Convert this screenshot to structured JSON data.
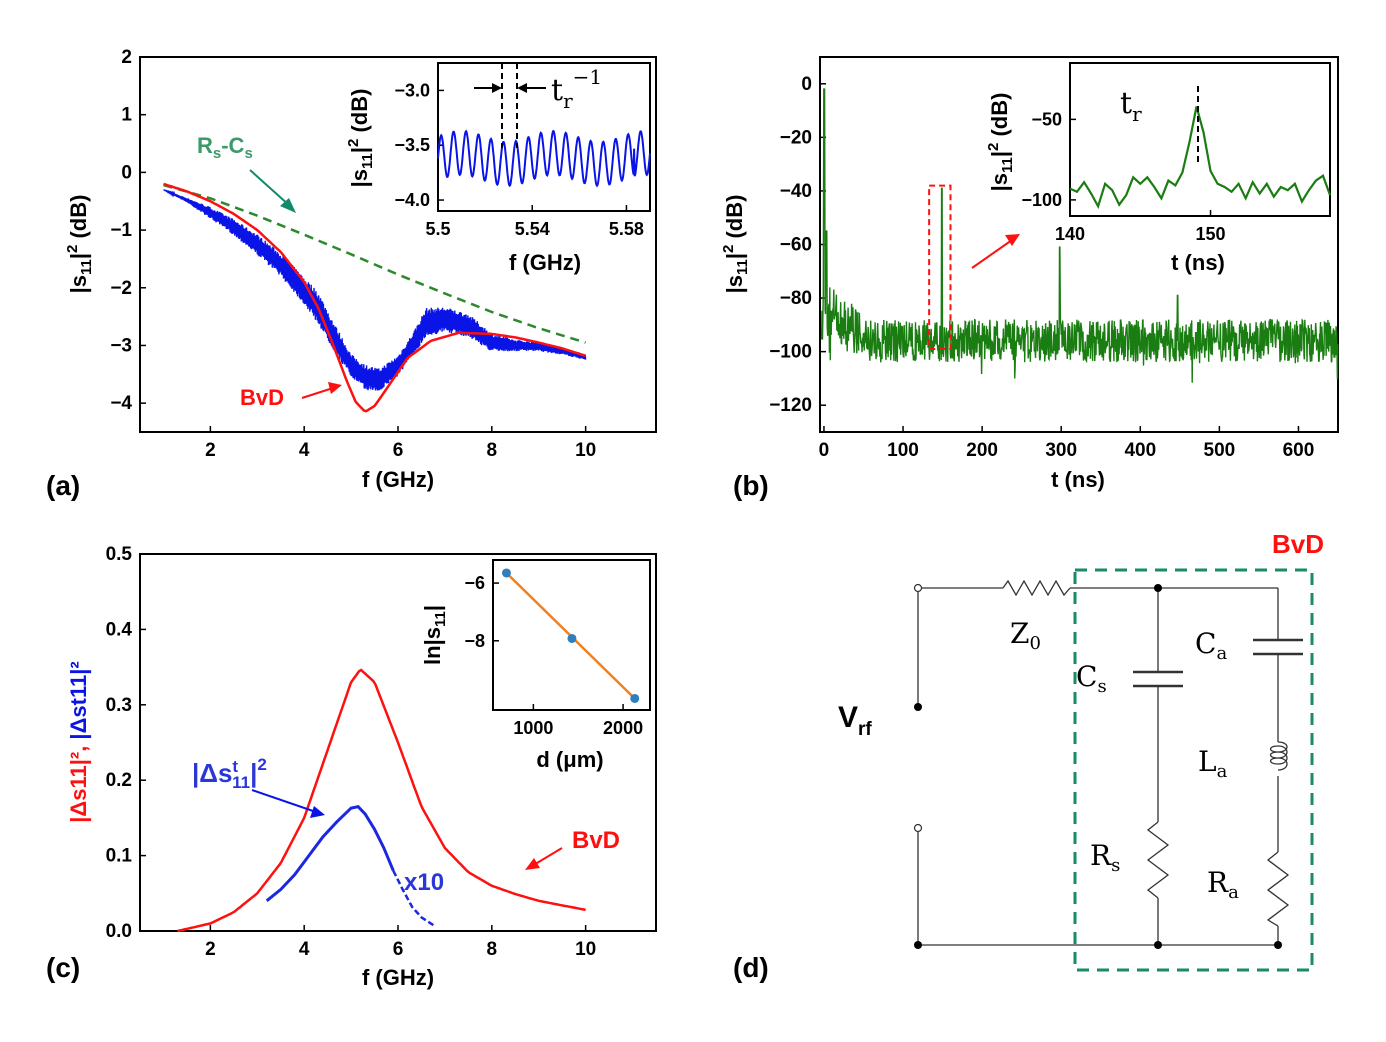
{
  "panels": {
    "a": "(a)",
    "b": "(b)",
    "c": "(c)",
    "d": "(d)"
  },
  "colors": {
    "blue": "#0a14e6",
    "red": "#ff1010",
    "green": "#1a7d12",
    "dashgreen": "#2b8a2b",
    "teal": "#138a6a",
    "orange": "#f08020",
    "dot": "#2f7fbf"
  },
  "chart_data": [
    {
      "id": "a",
      "type": "line",
      "xlabel": "f (GHz)",
      "ylabel": "|s11|² (dB)",
      "ylabel_parts": {
        "main": "|s",
        "sub": "11",
        "after": "|",
        "sup": "2",
        "unit": " (dB)"
      },
      "xlim": [
        0.5,
        11.5
      ],
      "ylim": [
        -4.5,
        2
      ],
      "xticks": [
        "2",
        "4",
        "6",
        "8",
        "10"
      ],
      "yticks": [
        "−4",
        "−3",
        "−2",
        "−1",
        "0",
        "1",
        "2"
      ],
      "annotations": {
        "rs_main": "R",
        "rs_sub1": "s",
        "rs_mid": "-C",
        "rs_sub2": "s",
        "bvd": "BvD"
      },
      "series": [
        {
          "name": "measured",
          "color": "blue",
          "x": [
            1,
            1.5,
            2,
            2.5,
            3,
            3.5,
            4,
            4.3,
            4.6,
            5,
            5.3,
            5.6,
            6,
            6.3,
            6.6,
            7,
            7.5,
            8,
            8.5,
            9,
            9.5,
            10
          ],
          "y": [
            -0.3,
            -0.48,
            -0.7,
            -0.95,
            -1.25,
            -1.6,
            -2.05,
            -2.35,
            -2.8,
            -3.35,
            -3.55,
            -3.6,
            -3.35,
            -3.0,
            -2.6,
            -2.55,
            -2.65,
            -2.95,
            -3.0,
            -3.02,
            -3.1,
            -3.2
          ],
          "spread": [
            0,
            0.04,
            0.1,
            0.14,
            0.18,
            0.2,
            0.24,
            0.28,
            0.25,
            0.2,
            0.22,
            0.2,
            0.18,
            0.2,
            0.25,
            0.22,
            0.2,
            0.16,
            0.1,
            0.08,
            0.06,
            0.05
          ]
        },
        {
          "name": "BvD",
          "color": "red",
          "x": [
            1,
            1.5,
            2,
            2.5,
            3,
            3.5,
            4,
            4.3,
            4.6,
            4.9,
            5.1,
            5.3,
            5.5,
            5.8,
            6.2,
            6.7,
            7.3,
            8,
            8.5,
            9,
            9.5,
            10
          ],
          "y": [
            -0.2,
            -0.33,
            -0.5,
            -0.72,
            -1.0,
            -1.38,
            -1.9,
            -2.35,
            -2.95,
            -3.6,
            -3.98,
            -4.15,
            -4.05,
            -3.7,
            -3.22,
            -2.92,
            -2.78,
            -2.8,
            -2.86,
            -2.95,
            -3.05,
            -3.18
          ]
        },
        {
          "name": "Rs-Cs",
          "color": "dashgreen",
          "dashed": true,
          "x": [
            1,
            2,
            3,
            4,
            5,
            6,
            7,
            8,
            9,
            10
          ],
          "y": [
            -0.22,
            -0.45,
            -0.75,
            -1.08,
            -1.42,
            -1.77,
            -2.1,
            -2.42,
            -2.7,
            -2.95
          ]
        }
      ],
      "inset": {
        "xlabel": "f (GHz)",
        "ylabel": "|s11|² (dB)",
        "xlim": [
          5.5,
          5.59
        ],
        "ylim": [
          -4.1,
          -2.75
        ],
        "xticks": [
          "5.5",
          "5.54",
          "5.58"
        ],
        "yticks": [
          "−4.0",
          "−3.5",
          "−3.0"
        ],
        "annotation_main": "t",
        "annotation_sub": "r",
        "annotation_sup": "−1",
        "series": [
          {
            "name": "measured",
            "color": "blue",
            "x0": 5.5,
            "x1": 5.59,
            "n_oscillations": 17,
            "center": -3.62,
            "amplitude": 0.2
          }
        ]
      }
    },
    {
      "id": "b",
      "type": "line",
      "xlabel": "t (ns)",
      "ylabel": "|s11|² (dB)",
      "xlim": [
        -5,
        650
      ],
      "ylim": [
        -130,
        10
      ],
      "xticks": [
        "0",
        "100",
        "200",
        "300",
        "400",
        "500",
        "600"
      ],
      "yticks": [
        "−120",
        "−100",
        "−80",
        "−60",
        "−40",
        "−20",
        "0"
      ],
      "series": [
        {
          "name": "time domain",
          "color": "green",
          "noise_mean": -96,
          "noise_amp": 8,
          "peaks": [
            {
              "t": 0.5,
              "y": -2
            },
            {
              "t": 3,
              "y": -55
            },
            {
              "t": 149,
              "y": -39
            },
            {
              "t": 298,
              "y": -61
            },
            {
              "t": 447,
              "y": -79
            }
          ]
        }
      ],
      "highlight_box": {
        "t0": 133,
        "t1": 160,
        "y0": -99,
        "y1": -38
      },
      "inset": {
        "xlabel": "t (ns)",
        "ylabel": "|s11|² (dB)",
        "xlim": [
          140,
          158.5
        ],
        "ylim": [
          -110,
          -15
        ],
        "xticks": [
          "140",
          "150"
        ],
        "yticks": [
          "−100",
          "−50"
        ],
        "annotation_main": "t",
        "annotation_sub": "r",
        "series": [
          {
            "name": "zoom",
            "color": "green",
            "t": [
              140,
              140.5,
              141,
              141.5,
              142,
              142.5,
              143,
              143.5,
              144,
              144.5,
              145,
              145.5,
              146,
              146.5,
              147,
              147.5,
              148,
              148.5,
              149,
              149.5,
              150,
              150.5,
              151,
              151.5,
              152,
              152.5,
              153,
              153.5,
              154,
              154.5,
              155,
              155.5,
              156,
              156.5,
              157,
              157.5,
              158,
              158.5
            ],
            "y": [
              -93,
              -95,
              -89,
              -96,
              -104,
              -90,
              -94,
              -103,
              -97,
              -86,
              -90,
              -86,
              -92,
              -99,
              -88,
              -91,
              -83,
              -64,
              -42,
              -58,
              -82,
              -90,
              -92,
              -95,
              -90,
              -99,
              -89,
              -96,
              -90,
              -98,
              -92,
              -94,
              -90,
              -101,
              -94,
              -88,
              -85,
              -97
            ]
          }
        ]
      }
    },
    {
      "id": "c",
      "type": "line",
      "xlabel": "f (GHz)",
      "ylabel_red": "|Δs11|², ",
      "ylabel_blue": "|Δst11|²",
      "xlim": [
        0.5,
        11.5
      ],
      "ylim": [
        0,
        0.5
      ],
      "xticks": [
        "2",
        "4",
        "6",
        "8",
        "10"
      ],
      "yticks": [
        "0.0",
        "0.1",
        "0.2",
        "0.3",
        "0.4",
        "0.5"
      ],
      "annotations": {
        "bvd": "BvD",
        "x10": "x10",
        "blue_label_main": "|Δs",
        "blue_label_sup": "t",
        "blue_label_sub": "11",
        "blue_label_end": "|",
        "blue_label_pow": "2"
      },
      "series": [
        {
          "name": "BvD",
          "color": "red",
          "x": [
            1.3,
            2,
            2.5,
            3,
            3.5,
            4,
            4.5,
            5,
            5.2,
            5.5,
            6,
            6.5,
            7,
            7.5,
            8,
            8.5,
            9,
            9.5,
            10
          ],
          "y": [
            0.0,
            0.01,
            0.025,
            0.05,
            0.09,
            0.15,
            0.24,
            0.33,
            0.347,
            0.33,
            0.25,
            0.165,
            0.11,
            0.078,
            0.06,
            0.049,
            0.04,
            0.034,
            0.028
          ]
        },
        {
          "name": "measured x10",
          "color": "blue",
          "x": [
            3.2,
            3.5,
            3.8,
            4.1,
            4.4,
            4.7,
            5.0,
            5.15,
            5.3,
            5.5,
            5.7,
            5.9,
            6.1,
            6.3,
            6.5,
            6.8
          ],
          "y": [
            0.04,
            0.055,
            0.075,
            0.1,
            0.125,
            0.145,
            0.163,
            0.165,
            0.155,
            0.135,
            0.11,
            0.08,
            0.055,
            0.032,
            0.018,
            0.006
          ]
        }
      ],
      "inset": {
        "xlabel": "d (μm)",
        "ylabel": "ln|s11|",
        "xlim": [
          550,
          2300
        ],
        "ylim": [
          -10.4,
          -5.2
        ],
        "xticks": [
          "1000",
          "2000"
        ],
        "yticks": [
          "−8",
          "−6"
        ],
        "series": [
          {
            "name": "fit",
            "color": "orange",
            "x": [
              700,
              2130
            ],
            "y": [
              -5.65,
              -10.0
            ]
          },
          {
            "name": "points",
            "color": "dot",
            "x": [
              700,
              1430,
              2130
            ],
            "y": [
              -5.65,
              -7.92,
              -10.0
            ]
          }
        ]
      }
    }
  ],
  "circuit": {
    "vrf_main": "V",
    "vrf_sub": "rf",
    "z0_main": "Z",
    "z0_sub": "0",
    "cs_main": "C",
    "cs_sub": "s",
    "ca_main": "C",
    "ca_sub": "a",
    "la_main": "L",
    "la_sub": "a",
    "rs_main": "R",
    "rs_sub": "s",
    "ra_main": "R",
    "ra_sub": "a",
    "box_label": "BvD"
  }
}
